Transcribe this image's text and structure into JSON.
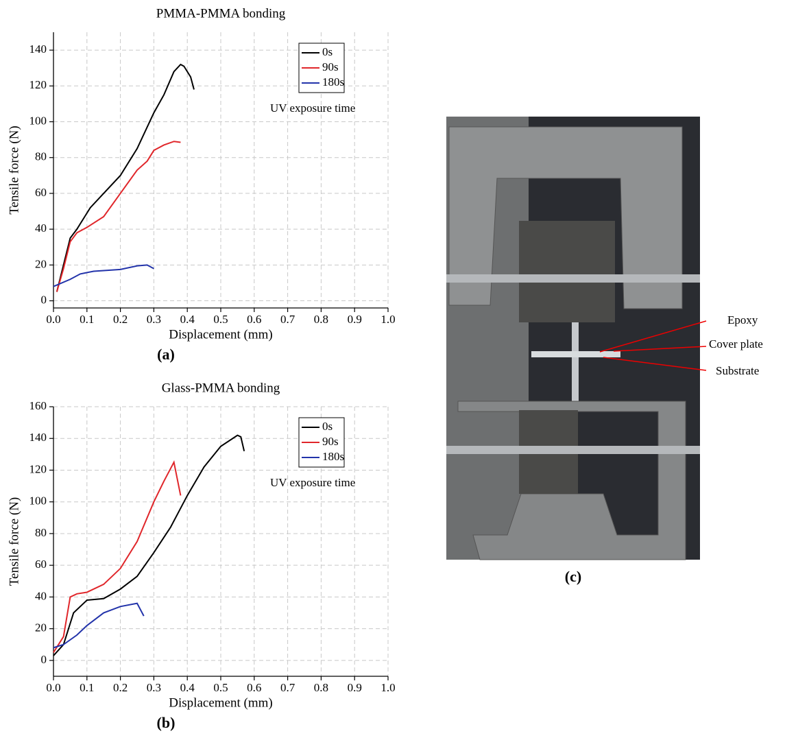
{
  "chart_data": [
    {
      "type": "line",
      "title": "PMMA-PMMA bonding",
      "caption": "(a)",
      "xlabel": "Displacement (mm)",
      "ylabel": "Tensile force (N)",
      "annotation": "UV exposure time",
      "xlim": [
        0,
        1
      ],
      "ylim": [
        -4,
        150
      ],
      "xticks": [
        {
          "value": 0,
          "label": "0.0"
        },
        0.1,
        0.2,
        0.3,
        0.4,
        0.5,
        0.6,
        0.7,
        0.8,
        0.9,
        {
          "value": 1,
          "label": "1.0"
        }
      ],
      "yticks": [
        0,
        20,
        40,
        60,
        80,
        100,
        120,
        140
      ],
      "grid": true,
      "legend": "upper right",
      "series": [
        {
          "name": "0s",
          "color": "#000000",
          "x": [
            0.01,
            0.03,
            0.05,
            0.07,
            0.09,
            0.11,
            0.15,
            0.2,
            0.25,
            0.3,
            0.33,
            0.36,
            0.38,
            0.39,
            0.41,
            0.42
          ],
          "values": [
            5,
            20,
            35,
            40,
            46,
            52,
            60,
            70,
            85,
            105,
            115,
            128,
            132,
            131,
            125,
            118
          ]
        },
        {
          "name": "90s",
          "color": "#e0262a",
          "x": [
            0.01,
            0.03,
            0.05,
            0.07,
            0.1,
            0.15,
            0.2,
            0.25,
            0.28,
            0.3,
            0.33,
            0.36,
            0.38
          ],
          "values": [
            5,
            18,
            33,
            38,
            41,
            47,
            60,
            73,
            78,
            84,
            87,
            89,
            88.5
          ]
        },
        {
          "name": "180s",
          "color": "#2233aa",
          "x": [
            0,
            0.05,
            0.08,
            0.12,
            0.2,
            0.25,
            0.28,
            0.3
          ],
          "values": [
            8,
            12,
            15,
            16.5,
            17.5,
            19.5,
            20,
            18
          ]
        }
      ]
    },
    {
      "type": "line",
      "title": "Glass-PMMA bonding",
      "caption": "(b)",
      "xlabel": "Displacement (mm)",
      "ylabel": "Tensile force (N)",
      "annotation": "UV exposure time",
      "xlim": [
        0,
        1
      ],
      "ylim": [
        -10,
        160
      ],
      "xticks": [
        {
          "value": 0,
          "label": "0.0"
        },
        0.1,
        0.2,
        0.3,
        0.4,
        0.5,
        0.6,
        0.7,
        0.8,
        0.9,
        {
          "value": 1,
          "label": "1.0"
        }
      ],
      "yticks": [
        0,
        20,
        40,
        60,
        80,
        100,
        120,
        140,
        160
      ],
      "grid": true,
      "legend": "upper right",
      "series": [
        {
          "name": "0s",
          "color": "#000000",
          "x": [
            0,
            0.03,
            0.06,
            0.1,
            0.15,
            0.2,
            0.25,
            0.3,
            0.35,
            0.4,
            0.45,
            0.5,
            0.55,
            0.56,
            0.57
          ],
          "values": [
            3,
            10,
            30,
            38,
            39,
            45,
            53,
            68,
            84,
            104,
            122,
            135,
            142,
            141,
            132
          ]
        },
        {
          "name": "90s",
          "color": "#e0262a",
          "x": [
            0,
            0.03,
            0.05,
            0.07,
            0.1,
            0.15,
            0.2,
            0.25,
            0.3,
            0.33,
            0.36,
            0.38
          ],
          "values": [
            5,
            15,
            40,
            42,
            43,
            48,
            58,
            75,
            100,
            113,
            125,
            104
          ]
        },
        {
          "name": "180s",
          "color": "#2233aa",
          "x": [
            0,
            0.03,
            0.07,
            0.1,
            0.15,
            0.2,
            0.25,
            0.27
          ],
          "values": [
            8,
            10,
            16,
            22,
            30,
            34,
            36,
            28
          ]
        }
      ]
    }
  ],
  "photo": {
    "caption": "(c)",
    "labels": [
      "Epoxy",
      "Cover plate",
      "Substrate"
    ]
  }
}
